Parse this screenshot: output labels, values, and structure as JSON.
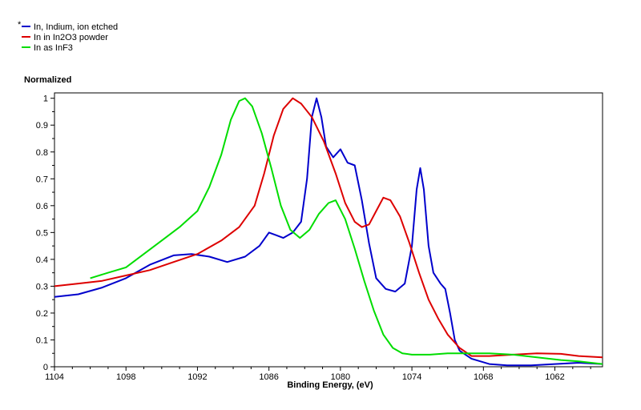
{
  "chart_data": {
    "type": "line",
    "title": "",
    "ylabel": "Normalized",
    "xlabel": "Binding Energy, (eV)",
    "xlim": [
      1104,
      1058
    ],
    "ylim": [
      0,
      1.02
    ],
    "x_reversed": true,
    "grid": false,
    "legend_position": "top-left",
    "legend_marker": "*",
    "x_ticks": [
      1104,
      1098,
      1092,
      1086,
      1080,
      1074,
      1068,
      1062
    ],
    "y_ticks": [
      0,
      0.1,
      0.2,
      0.3,
      0.4,
      0.5,
      0.6,
      0.7,
      0.8,
      0.9,
      1
    ],
    "series": [
      {
        "name": "In, Indium, ion etched",
        "color": "#0000cc",
        "points": [
          [
            1104,
            0.26
          ],
          [
            1102,
            0.27
          ],
          [
            1100,
            0.295
          ],
          [
            1098,
            0.33
          ],
          [
            1096,
            0.38
          ],
          [
            1094,
            0.415
          ],
          [
            1092.5,
            0.42
          ],
          [
            1091,
            0.41
          ],
          [
            1089.5,
            0.39
          ],
          [
            1088,
            0.41
          ],
          [
            1086.8,
            0.45
          ],
          [
            1086,
            0.5
          ],
          [
            1085.4,
            0.49
          ],
          [
            1084.8,
            0.48
          ],
          [
            1084,
            0.5
          ],
          [
            1083.3,
            0.54
          ],
          [
            1082.8,
            0.7
          ],
          [
            1082.4,
            0.93
          ],
          [
            1082.0,
            1.0
          ],
          [
            1081.6,
            0.93
          ],
          [
            1081.2,
            0.82
          ],
          [
            1080.6,
            0.78
          ],
          [
            1080.0,
            0.81
          ],
          [
            1079.4,
            0.76
          ],
          [
            1078.8,
            0.75
          ],
          [
            1078.2,
            0.62
          ],
          [
            1077.6,
            0.46
          ],
          [
            1077.0,
            0.33
          ],
          [
            1076.2,
            0.29
          ],
          [
            1075.4,
            0.28
          ],
          [
            1074.6,
            0.31
          ],
          [
            1074.0,
            0.45
          ],
          [
            1073.6,
            0.66
          ],
          [
            1073.3,
            0.74
          ],
          [
            1073.0,
            0.66
          ],
          [
            1072.6,
            0.45
          ],
          [
            1072.2,
            0.35
          ],
          [
            1071.6,
            0.31
          ],
          [
            1071.2,
            0.29
          ],
          [
            1070.8,
            0.2
          ],
          [
            1070.4,
            0.1
          ],
          [
            1070.0,
            0.06
          ],
          [
            1069.0,
            0.03
          ],
          [
            1067.5,
            0.01
          ],
          [
            1066,
            0.005
          ],
          [
            1064,
            0.005
          ],
          [
            1062,
            0.01
          ],
          [
            1060,
            0.015
          ],
          [
            1058,
            0.01
          ]
        ]
      },
      {
        "name": "In in In2O3 powder",
        "color": "#dd0000",
        "points": [
          [
            1104,
            0.3
          ],
          [
            1102,
            0.31
          ],
          [
            1100,
            0.32
          ],
          [
            1098,
            0.34
          ],
          [
            1096,
            0.36
          ],
          [
            1094,
            0.39
          ],
          [
            1092,
            0.42
          ],
          [
            1090,
            0.47
          ],
          [
            1088.5,
            0.52
          ],
          [
            1087.2,
            0.6
          ],
          [
            1086.4,
            0.72
          ],
          [
            1085.6,
            0.86
          ],
          [
            1084.8,
            0.96
          ],
          [
            1084.0,
            1.0
          ],
          [
            1083.3,
            0.98
          ],
          [
            1082.4,
            0.93
          ],
          [
            1081.4,
            0.84
          ],
          [
            1080.4,
            0.72
          ],
          [
            1079.6,
            0.61
          ],
          [
            1078.8,
            0.54
          ],
          [
            1078.2,
            0.52
          ],
          [
            1077.6,
            0.53
          ],
          [
            1077.0,
            0.58
          ],
          [
            1076.4,
            0.63
          ],
          [
            1075.8,
            0.62
          ],
          [
            1075.0,
            0.56
          ],
          [
            1074.2,
            0.46
          ],
          [
            1073.4,
            0.35
          ],
          [
            1072.6,
            0.25
          ],
          [
            1071.8,
            0.18
          ],
          [
            1071.0,
            0.12
          ],
          [
            1070.0,
            0.07
          ],
          [
            1069.0,
            0.04
          ],
          [
            1067.5,
            0.04
          ],
          [
            1065.5,
            0.045
          ],
          [
            1063.5,
            0.05
          ],
          [
            1061.5,
            0.048
          ],
          [
            1060,
            0.04
          ],
          [
            1058,
            0.035
          ]
        ]
      },
      {
        "name": "In as InF3",
        "color": "#00dd00",
        "points": [
          [
            1101,
            0.33
          ],
          [
            1099.5,
            0.35
          ],
          [
            1098,
            0.37
          ],
          [
            1096.5,
            0.42
          ],
          [
            1095,
            0.47
          ],
          [
            1093.5,
            0.52
          ],
          [
            1092,
            0.58
          ],
          [
            1091,
            0.67
          ],
          [
            1090,
            0.79
          ],
          [
            1089.2,
            0.92
          ],
          [
            1088.5,
            0.99
          ],
          [
            1088.0,
            1.0
          ],
          [
            1087.4,
            0.97
          ],
          [
            1086.6,
            0.87
          ],
          [
            1085.8,
            0.74
          ],
          [
            1085.0,
            0.6
          ],
          [
            1084.2,
            0.51
          ],
          [
            1083.4,
            0.48
          ],
          [
            1082.6,
            0.51
          ],
          [
            1081.8,
            0.57
          ],
          [
            1081.0,
            0.61
          ],
          [
            1080.4,
            0.62
          ],
          [
            1079.6,
            0.55
          ],
          [
            1078.8,
            0.44
          ],
          [
            1078.0,
            0.32
          ],
          [
            1077.2,
            0.21
          ],
          [
            1076.4,
            0.12
          ],
          [
            1075.6,
            0.07
          ],
          [
            1074.8,
            0.05
          ],
          [
            1074.0,
            0.045
          ],
          [
            1072.5,
            0.045
          ],
          [
            1071.0,
            0.05
          ],
          [
            1069.5,
            0.05
          ],
          [
            1067.5,
            0.05
          ],
          [
            1065.5,
            0.045
          ],
          [
            1063.5,
            0.035
          ],
          [
            1061.5,
            0.025
          ],
          [
            1060,
            0.02
          ],
          [
            1058,
            0.01
          ]
        ]
      }
    ]
  }
}
